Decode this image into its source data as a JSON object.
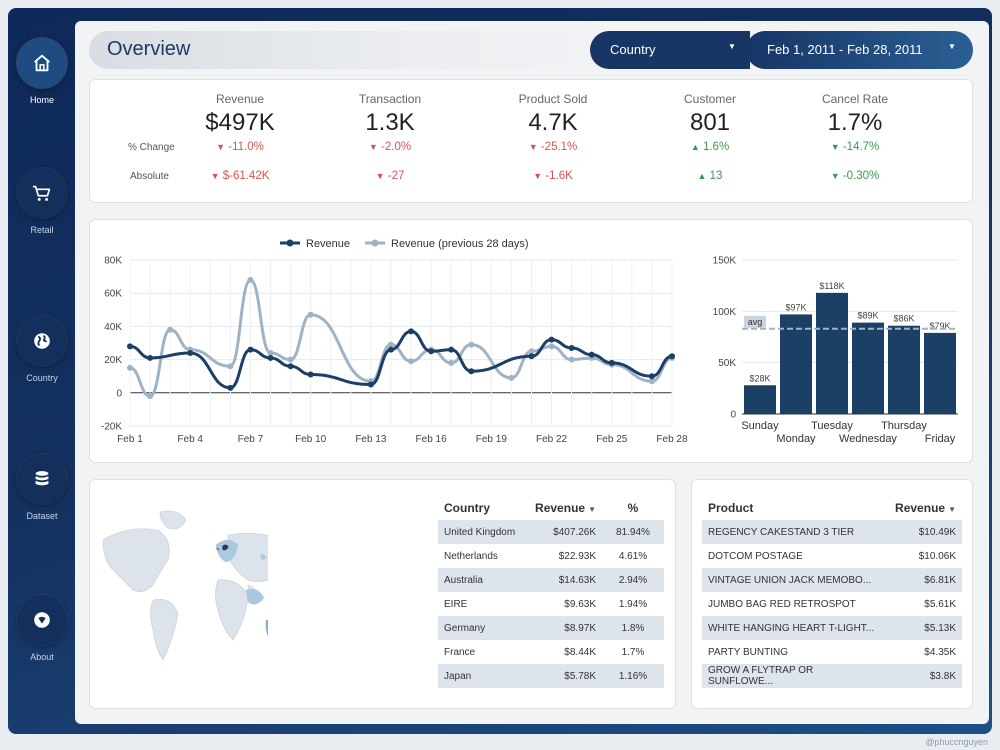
{
  "nav": {
    "items": [
      {
        "label": "Home",
        "icon": "home-icon"
      },
      {
        "label": "Retail",
        "icon": "cart-icon"
      },
      {
        "label": "Country",
        "icon": "globe-icon"
      },
      {
        "label": "Dataset",
        "icon": "database-icon"
      },
      {
        "label": "About",
        "icon": "about-icon"
      }
    ]
  },
  "header": {
    "title": "Overview",
    "country_filter": "Country",
    "date_range": "Feb 1, 2011 - Feb 28, 2011"
  },
  "kpis": {
    "row_labels": {
      "change": "% Change",
      "absolute": "Absolute"
    },
    "items": [
      {
        "title": "Revenue",
        "value": "$497K",
        "pct": "-11.0%",
        "abs": "$-61.42K",
        "dir": "down"
      },
      {
        "title": "Transaction",
        "value": "1.3K",
        "pct": "-2.0%",
        "abs": "-27",
        "dir": "down"
      },
      {
        "title": "Product Sold",
        "value": "4.7K",
        "pct": "-25.1%",
        "abs": "-1.6K",
        "dir": "down"
      },
      {
        "title": "Customer",
        "value": "801",
        "pct": "1.6%",
        "abs": "13",
        "dir": "up"
      },
      {
        "title": "Cancel Rate",
        "value": "1.7%",
        "pct": "-14.7%",
        "abs": "-0.30%",
        "dir": "down-good"
      }
    ]
  },
  "chart_data": [
    {
      "type": "line",
      "title": "",
      "x": [
        "Feb 1",
        "Feb 2",
        "Feb 3",
        "Feb 4",
        "Feb 5",
        "Feb 6",
        "Feb 7",
        "Feb 8",
        "Feb 9",
        "Feb 10",
        "Feb 11",
        "Feb 12",
        "Feb 13",
        "Feb 14",
        "Feb 15",
        "Feb 16",
        "Feb 17",
        "Feb 18",
        "Feb 19",
        "Feb 20",
        "Feb 21",
        "Feb 22",
        "Feb 23",
        "Feb 24",
        "Feb 25",
        "Feb 26",
        "Feb 27",
        "Feb 28"
      ],
      "tick_labels": [
        "Feb 1",
        "Feb 4",
        "Feb 7",
        "Feb 10",
        "Feb 13",
        "Feb 16",
        "Feb 19",
        "Feb 22",
        "Feb 25",
        "Feb 28"
      ],
      "y_ticks": [
        "80K",
        "60K",
        "40K",
        "20K",
        "0",
        "-20K"
      ],
      "ylim": [
        -20000,
        80000
      ],
      "series": [
        {
          "name": "Revenue",
          "color": "#1c3f66",
          "values": [
            28000,
            21000,
            null,
            24000,
            null,
            3000,
            26000,
            21000,
            16000,
            11000,
            null,
            null,
            5000,
            26000,
            37000,
            25000,
            26000,
            13000,
            null,
            null,
            22000,
            32000,
            27000,
            23000,
            18000,
            null,
            10000,
            22000
          ]
        },
        {
          "name": "Revenue (previous 28 days)",
          "color": "#9fb3c6",
          "values": [
            15000,
            -2000,
            38000,
            26000,
            null,
            16000,
            68000,
            24000,
            20000,
            47000,
            null,
            null,
            7000,
            29000,
            19000,
            26000,
            18000,
            29000,
            null,
            9000,
            25000,
            28000,
            20000,
            21000,
            17000,
            null,
            7000,
            21000
          ]
        }
      ]
    },
    {
      "type": "bar",
      "categories": [
        "Sunday",
        "Monday",
        "Tuesday",
        "Wednesday",
        "Thursday",
        "Friday"
      ],
      "values": [
        28000,
        97000,
        118000,
        89000,
        86000,
        79000
      ],
      "data_labels": [
        "$28K",
        "$97K",
        "$118K",
        "$89K",
        "$86K",
        "$79K"
      ],
      "y_ticks": [
        "150K",
        "100K",
        "50K",
        "0"
      ],
      "ylim": [
        0,
        150000
      ],
      "avg": 83000,
      "avg_label": "avg",
      "color": "#1c3f66"
    }
  ],
  "country_table": {
    "headers": [
      "Country",
      "Revenue",
      "%"
    ],
    "rows": [
      [
        "United Kingdom",
        "$407.26K",
        "81.94%"
      ],
      [
        "Netherlands",
        "$22.93K",
        "4.61%"
      ],
      [
        "Australia",
        "$14.63K",
        "2.94%"
      ],
      [
        "EIRE",
        "$9.63K",
        "1.94%"
      ],
      [
        "Germany",
        "$8.97K",
        "1.8%"
      ],
      [
        "France",
        "$8.44K",
        "1.7%"
      ],
      [
        "Japan",
        "$5.78K",
        "1.16%"
      ]
    ]
  },
  "product_table": {
    "headers": [
      "Product",
      "Revenue"
    ],
    "rows": [
      [
        "REGENCY CAKESTAND 3 TIER",
        "$10.49K"
      ],
      [
        "DOTCOM POSTAGE",
        "$10.06K"
      ],
      [
        "VINTAGE UNION JACK MEMOBO...",
        "$6.81K"
      ],
      [
        "JUMBO BAG RED RETROSPOT",
        "$5.61K"
      ],
      [
        "WHITE HANGING HEART T-LIGHT...",
        "$5.13K"
      ],
      [
        "PARTY BUNTING",
        "$4.35K"
      ],
      [
        "GROW A FLYTRAP OR SUNFLOWE...",
        "$3.8K"
      ]
    ]
  },
  "map": {
    "label": "world-map"
  },
  "footer": {
    "credit": "@phuccnguyen"
  }
}
